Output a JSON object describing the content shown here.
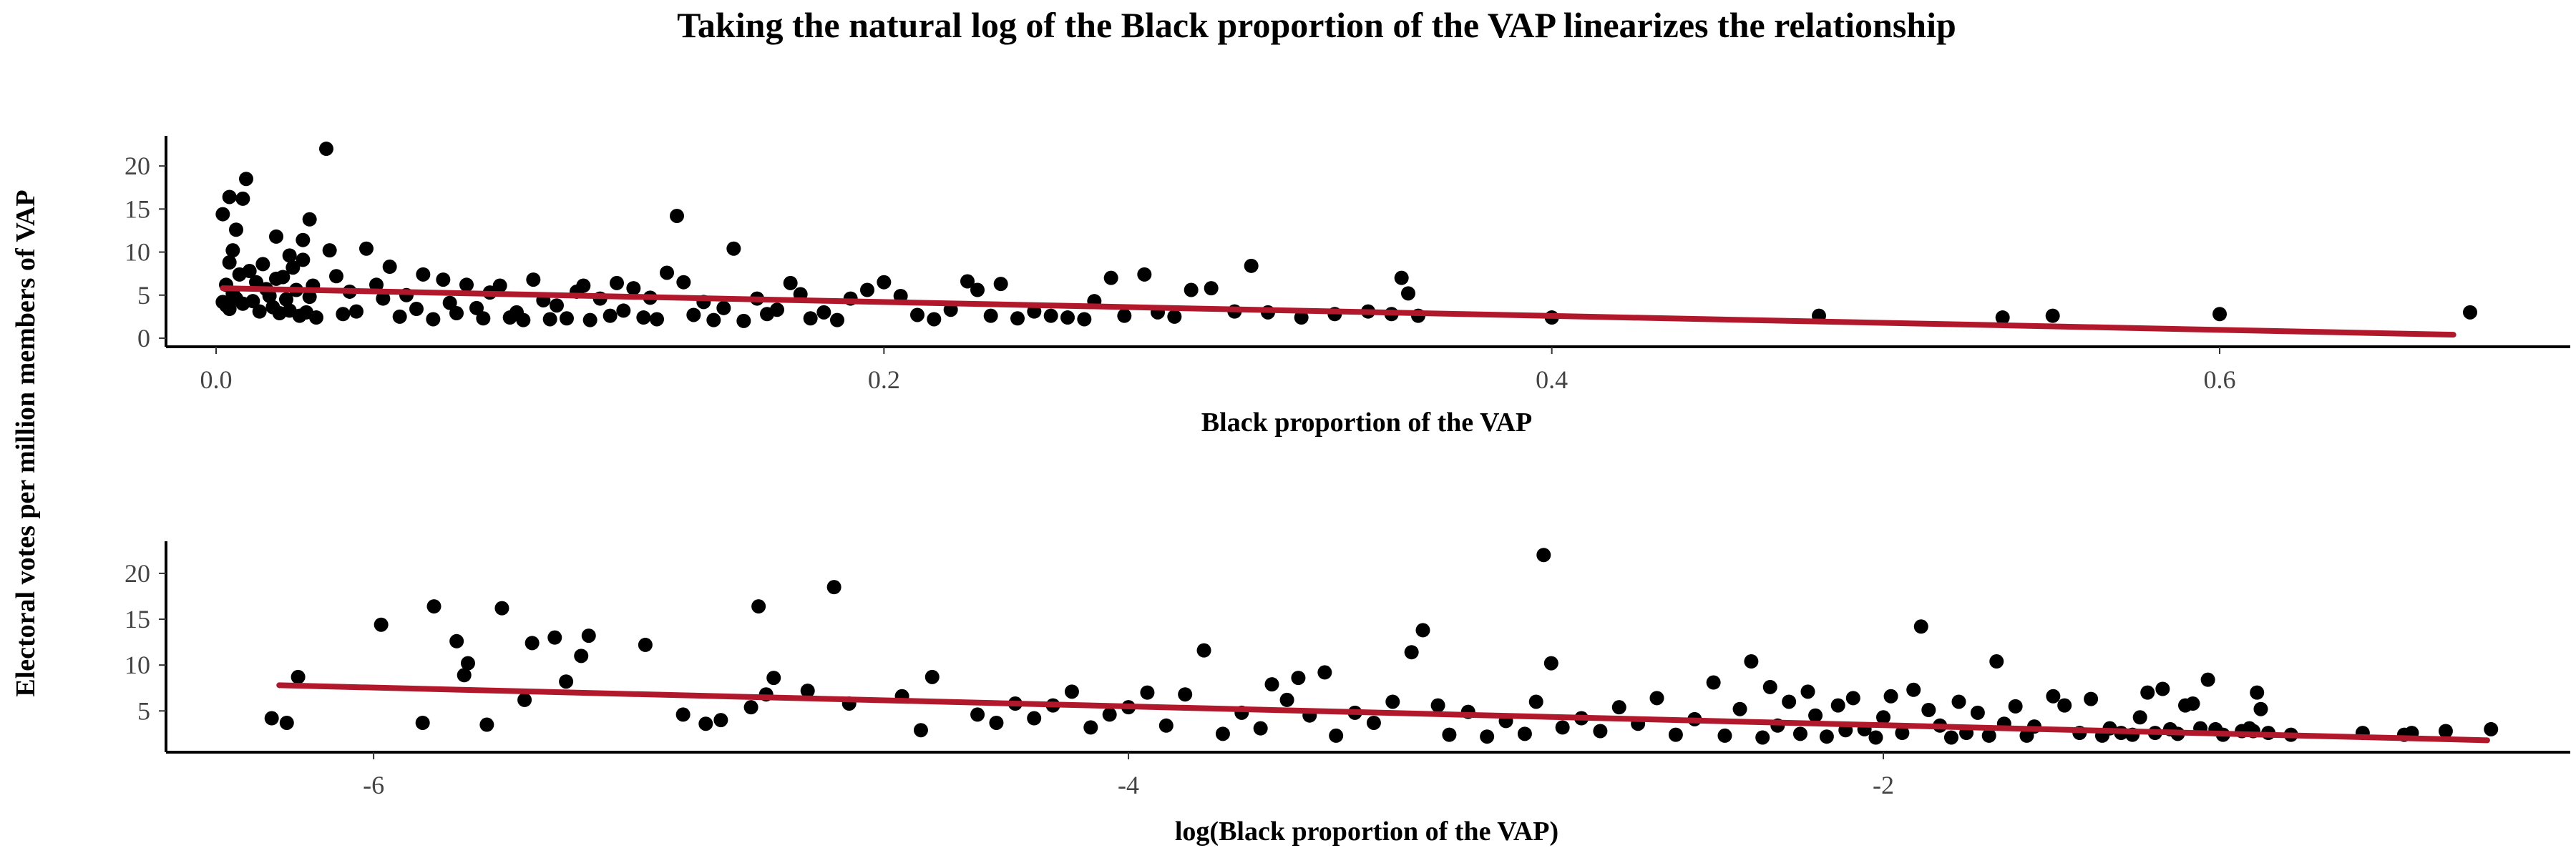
{
  "title": "Taking the natural log of the Black proportion of the VAP linearizes the relationship",
  "shared_ylabel": "Electoral votes per million members of VAP",
  "colors": {
    "points": "#000000",
    "fit_line": "#b2182b"
  },
  "chart_data": [
    {
      "type": "scatter",
      "xlabel": "Black proportion of the VAP",
      "ylabel": "Electoral votes per million members of VAP",
      "xlim": [
        -0.015,
        0.705
      ],
      "ylim": [
        -1,
        23.5
      ],
      "xticks": [
        0.0,
        0.2,
        0.4,
        0.6
      ],
      "xtick_labels": [
        "0.0",
        "0.2",
        "0.4",
        "0.6"
      ],
      "yticks": [
        0,
        5,
        10,
        15,
        20
      ],
      "ytick_labels": [
        "0",
        "5",
        "10",
        "15",
        "20"
      ],
      "grid": false,
      "fit_line": {
        "x": [
          0.002,
          0.67
        ],
        "y": [
          5.8,
          0.4
        ]
      },
      "points": [
        [
          0.002,
          14.4
        ],
        [
          0.004,
          16.4
        ],
        [
          0.006,
          12.6
        ],
        [
          0.005,
          10.2
        ],
        [
          0.004,
          8.8
        ],
        [
          0.008,
          16.2
        ],
        [
          0.009,
          18.5
        ],
        [
          0.003,
          6.2
        ],
        [
          0.007,
          7.4
        ],
        [
          0.006,
          4.6
        ],
        [
          0.002,
          4.2
        ],
        [
          0.003,
          3.8
        ],
        [
          0.004,
          3.4
        ],
        [
          0.005,
          5.2
        ],
        [
          0.008,
          4.0
        ],
        [
          0.01,
          7.8
        ],
        [
          0.012,
          6.5
        ],
        [
          0.011,
          4.3
        ],
        [
          0.013,
          3.1
        ],
        [
          0.014,
          8.6
        ],
        [
          0.015,
          5.7
        ],
        [
          0.016,
          4.9
        ],
        [
          0.017,
          3.6
        ],
        [
          0.018,
          6.9
        ],
        [
          0.019,
          2.9
        ],
        [
          0.02,
          7.1
        ],
        [
          0.021,
          4.5
        ],
        [
          0.022,
          3.2
        ],
        [
          0.023,
          8.2
        ],
        [
          0.024,
          5.6
        ],
        [
          0.025,
          2.6
        ],
        [
          0.026,
          9.1
        ],
        [
          0.027,
          3.0
        ],
        [
          0.028,
          4.8
        ],
        [
          0.029,
          6.1
        ],
        [
          0.03,
          2.4
        ],
        [
          0.018,
          11.8
        ],
        [
          0.022,
          9.6
        ],
        [
          0.026,
          11.4
        ],
        [
          0.028,
          13.8
        ],
        [
          0.033,
          22.0
        ],
        [
          0.034,
          10.2
        ],
        [
          0.036,
          7.2
        ],
        [
          0.038,
          2.8
        ],
        [
          0.04,
          5.4
        ],
        [
          0.042,
          3.1
        ],
        [
          0.045,
          10.4
        ],
        [
          0.048,
          6.2
        ],
        [
          0.05,
          4.6
        ],
        [
          0.052,
          8.3
        ],
        [
          0.055,
          2.5
        ],
        [
          0.057,
          5.0
        ],
        [
          0.06,
          3.4
        ],
        [
          0.062,
          7.4
        ],
        [
          0.065,
          2.2
        ],
        [
          0.068,
          6.8
        ],
        [
          0.07,
          4.1
        ],
        [
          0.072,
          2.9
        ],
        [
          0.075,
          6.2
        ],
        [
          0.078,
          3.5
        ],
        [
          0.08,
          2.3
        ],
        [
          0.082,
          5.3
        ],
        [
          0.085,
          6.1
        ],
        [
          0.088,
          2.4
        ],
        [
          0.09,
          3.0
        ],
        [
          0.092,
          2.1
        ],
        [
          0.095,
          6.8
        ],
        [
          0.098,
          4.4
        ],
        [
          0.1,
          2.2
        ],
        [
          0.102,
          3.8
        ],
        [
          0.105,
          2.3
        ],
        [
          0.108,
          5.4
        ],
        [
          0.11,
          6.1
        ],
        [
          0.112,
          2.1
        ],
        [
          0.115,
          4.6
        ],
        [
          0.118,
          2.6
        ],
        [
          0.12,
          6.4
        ],
        [
          0.122,
          3.2
        ],
        [
          0.125,
          5.8
        ],
        [
          0.128,
          2.4
        ],
        [
          0.13,
          4.7
        ],
        [
          0.132,
          2.2
        ],
        [
          0.135,
          7.6
        ],
        [
          0.138,
          14.2
        ],
        [
          0.14,
          6.5
        ],
        [
          0.143,
          2.7
        ],
        [
          0.146,
          4.2
        ],
        [
          0.149,
          2.1
        ],
        [
          0.152,
          3.5
        ],
        [
          0.155,
          10.4
        ],
        [
          0.158,
          2.0
        ],
        [
          0.162,
          4.6
        ],
        [
          0.165,
          2.8
        ],
        [
          0.168,
          3.3
        ],
        [
          0.172,
          6.4
        ],
        [
          0.175,
          5.1
        ],
        [
          0.178,
          2.3
        ],
        [
          0.182,
          3.0
        ],
        [
          0.186,
          2.1
        ],
        [
          0.19,
          4.6
        ],
        [
          0.195,
          5.6
        ],
        [
          0.2,
          6.5
        ],
        [
          0.205,
          4.9
        ],
        [
          0.21,
          2.7
        ],
        [
          0.215,
          2.2
        ],
        [
          0.22,
          3.3
        ],
        [
          0.225,
          6.6
        ],
        [
          0.228,
          5.6
        ],
        [
          0.232,
          2.6
        ],
        [
          0.235,
          6.3
        ],
        [
          0.24,
          2.3
        ],
        [
          0.245,
          3.1
        ],
        [
          0.25,
          2.6
        ],
        [
          0.255,
          2.4
        ],
        [
          0.26,
          2.2
        ],
        [
          0.263,
          4.3
        ],
        [
          0.268,
          7.0
        ],
        [
          0.272,
          2.6
        ],
        [
          0.278,
          7.4
        ],
        [
          0.282,
          3.0
        ],
        [
          0.287,
          2.5
        ],
        [
          0.292,
          5.6
        ],
        [
          0.298,
          5.8
        ],
        [
          0.305,
          3.1
        ],
        [
          0.31,
          8.4
        ],
        [
          0.315,
          3.0
        ],
        [
          0.325,
          2.4
        ],
        [
          0.335,
          2.8
        ],
        [
          0.345,
          3.1
        ],
        [
          0.352,
          2.8
        ],
        [
          0.355,
          7.0
        ],
        [
          0.357,
          5.2
        ],
        [
          0.36,
          2.6
        ],
        [
          0.4,
          2.4
        ],
        [
          0.48,
          2.6
        ],
        [
          0.535,
          2.4
        ],
        [
          0.55,
          2.6
        ],
        [
          0.6,
          2.8
        ],
        [
          0.675,
          3.0
        ]
      ]
    },
    {
      "type": "scatter",
      "xlabel": "log(Black proportion of the VAP)",
      "ylabel": "Electoral votes per million members of VAP",
      "xlim": [
        -6.55,
        -0.18
      ],
      "ylim": [
        0.5,
        23.5
      ],
      "xticks": [
        -6,
        -4,
        -2
      ],
      "xtick_labels": [
        "-6",
        "-4",
        "-2"
      ],
      "yticks": [
        5,
        10,
        15,
        20
      ],
      "ytick_labels": [
        "5",
        "10",
        "15",
        "20"
      ],
      "grid": false,
      "fit_line": {
        "x": [
          -6.25,
          -0.4
        ],
        "y": [
          7.8,
          1.8
        ]
      },
      "points": [
        [
          -6.27,
          4.2
        ],
        [
          -6.23,
          3.7
        ],
        [
          -6.2,
          8.7
        ],
        [
          -5.98,
          14.4
        ],
        [
          -5.87,
          3.7
        ],
        [
          -5.84,
          16.4
        ],
        [
          -5.78,
          12.6
        ],
        [
          -5.76,
          8.9
        ],
        [
          -5.75,
          10.2
        ],
        [
          -5.7,
          3.5
        ],
        [
          -5.66,
          16.2
        ],
        [
          -5.6,
          6.2
        ],
        [
          -5.58,
          12.4
        ],
        [
          -5.52,
          13.0
        ],
        [
          -5.49,
          8.2
        ],
        [
          -5.45,
          11.0
        ],
        [
          -5.43,
          13.2
        ],
        [
          -5.28,
          12.2
        ],
        [
          -5.18,
          4.6
        ],
        [
          -5.12,
          3.6
        ],
        [
          -5.08,
          4.0
        ],
        [
          -5.0,
          5.4
        ],
        [
          -4.98,
          16.4
        ],
        [
          -4.96,
          6.8
        ],
        [
          -4.94,
          8.6
        ],
        [
          -4.85,
          7.2
        ],
        [
          -4.78,
          18.5
        ],
        [
          -4.74,
          5.8
        ],
        [
          -4.6,
          6.6
        ],
        [
          -4.55,
          2.9
        ],
        [
          -4.52,
          8.7
        ],
        [
          -4.4,
          4.6
        ],
        [
          -4.35,
          3.7
        ],
        [
          -4.3,
          5.8
        ],
        [
          -4.25,
          4.2
        ],
        [
          -4.2,
          5.6
        ],
        [
          -4.15,
          7.1
        ],
        [
          -4.1,
          3.2
        ],
        [
          -4.05,
          4.6
        ],
        [
          -4.0,
          5.4
        ],
        [
          -3.95,
          7.0
        ],
        [
          -3.9,
          3.4
        ],
        [
          -3.85,
          6.8
        ],
        [
          -3.8,
          11.6
        ],
        [
          -3.75,
          2.5
        ],
        [
          -3.7,
          4.8
        ],
        [
          -3.65,
          3.1
        ],
        [
          -3.62,
          7.9
        ],
        [
          -3.58,
          6.2
        ],
        [
          -3.55,
          8.6
        ],
        [
          -3.52,
          4.5
        ],
        [
          -3.48,
          9.2
        ],
        [
          -3.45,
          2.3
        ],
        [
          -3.4,
          4.8
        ],
        [
          -3.35,
          3.7
        ],
        [
          -3.3,
          6.0
        ],
        [
          -3.25,
          11.4
        ],
        [
          -3.22,
          13.8
        ],
        [
          -3.18,
          5.6
        ],
        [
          -3.15,
          2.4
        ],
        [
          -3.1,
          4.9
        ],
        [
          -3.05,
          2.2
        ],
        [
          -3.0,
          3.9
        ],
        [
          -2.95,
          2.5
        ],
        [
          -2.92,
          6.0
        ],
        [
          -2.9,
          22.0
        ],
        [
          -2.88,
          10.2
        ],
        [
          -2.85,
          3.2
        ],
        [
          -2.8,
          4.2
        ],
        [
          -2.75,
          2.8
        ],
        [
          -2.7,
          5.4
        ],
        [
          -2.65,
          3.6
        ],
        [
          -2.6,
          6.4
        ],
        [
          -2.55,
          2.4
        ],
        [
          -2.5,
          4.1
        ],
        [
          -2.45,
          8.1
        ],
        [
          -2.42,
          2.3
        ],
        [
          -2.38,
          5.2
        ],
        [
          -2.35,
          10.4
        ],
        [
          -2.32,
          2.1
        ],
        [
          -2.3,
          7.6
        ],
        [
          -2.28,
          3.4
        ],
        [
          -2.25,
          6.0
        ],
        [
          -2.22,
          2.5
        ],
        [
          -2.2,
          7.1
        ],
        [
          -2.18,
          4.5
        ],
        [
          -2.15,
          2.2
        ],
        [
          -2.12,
          5.6
        ],
        [
          -2.1,
          2.9
        ],
        [
          -2.08,
          6.4
        ],
        [
          -2.05,
          3.0
        ],
        [
          -2.02,
          2.1
        ],
        [
          -2.0,
          4.3
        ],
        [
          -1.98,
          6.6
        ],
        [
          -1.95,
          2.6
        ],
        [
          -1.92,
          7.3
        ],
        [
          -1.9,
          14.2
        ],
        [
          -1.88,
          5.1
        ],
        [
          -1.85,
          3.4
        ],
        [
          -1.82,
          2.1
        ],
        [
          -1.8,
          6.0
        ],
        [
          -1.78,
          2.6
        ],
        [
          -1.75,
          4.8
        ],
        [
          -1.72,
          2.3
        ],
        [
          -1.7,
          10.4
        ],
        [
          -1.68,
          3.6
        ],
        [
          -1.65,
          5.5
        ],
        [
          -1.62,
          2.3
        ],
        [
          -1.6,
          3.3
        ],
        [
          -1.55,
          6.6
        ],
        [
          -1.52,
          5.6
        ],
        [
          -1.48,
          2.6
        ],
        [
          -1.45,
          6.3
        ],
        [
          -1.42,
          2.3
        ],
        [
          -1.4,
          3.1
        ],
        [
          -1.37,
          2.6
        ],
        [
          -1.34,
          2.4
        ],
        [
          -1.32,
          4.3
        ],
        [
          -1.3,
          7.0
        ],
        [
          -1.28,
          2.6
        ],
        [
          -1.26,
          7.4
        ],
        [
          -1.24,
          3.0
        ],
        [
          -1.22,
          2.5
        ],
        [
          -1.2,
          5.6
        ],
        [
          -1.18,
          5.8
        ],
        [
          -1.16,
          3.1
        ],
        [
          -1.14,
          8.4
        ],
        [
          -1.12,
          3.0
        ],
        [
          -1.1,
          2.4
        ],
        [
          -1.05,
          2.8
        ],
        [
          -1.03,
          3.1
        ],
        [
          -1.02,
          2.8
        ],
        [
          -1.01,
          7.0
        ],
        [
          -1.0,
          5.2
        ],
        [
          -0.98,
          2.6
        ],
        [
          -0.92,
          2.4
        ],
        [
          -0.73,
          2.6
        ],
        [
          -0.62,
          2.4
        ],
        [
          -0.6,
          2.6
        ],
        [
          -0.51,
          2.8
        ],
        [
          -0.39,
          3.0
        ]
      ]
    }
  ]
}
